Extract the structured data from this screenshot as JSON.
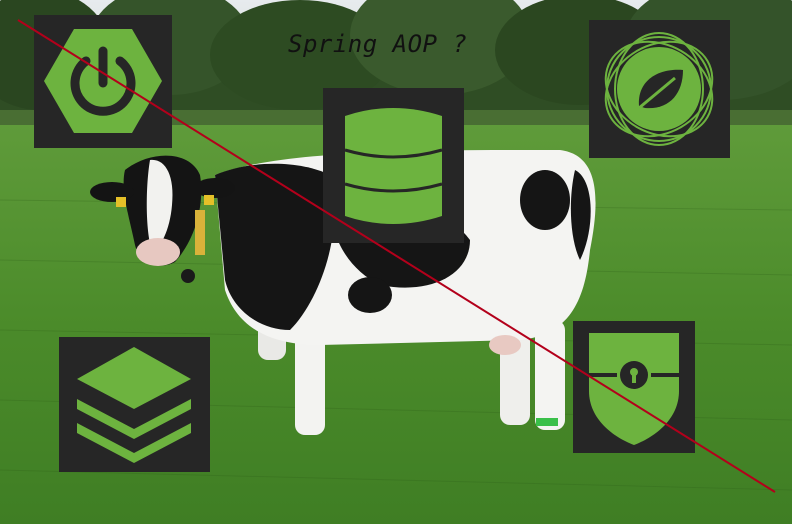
{
  "meme": {
    "caption": "Spring AOP ?"
  },
  "colors": {
    "spring_green": "#6db33f",
    "tile_dark": "#262626",
    "strike_red": "#b3001b",
    "grass": "#4a8f2c",
    "sky": "#dfe4e8"
  },
  "icons": [
    "spring-boot-power-icon",
    "spring-data-icon",
    "spring-framework-leaf-icon",
    "spring-cloud-stack-icon",
    "spring-security-shield-icon"
  ]
}
